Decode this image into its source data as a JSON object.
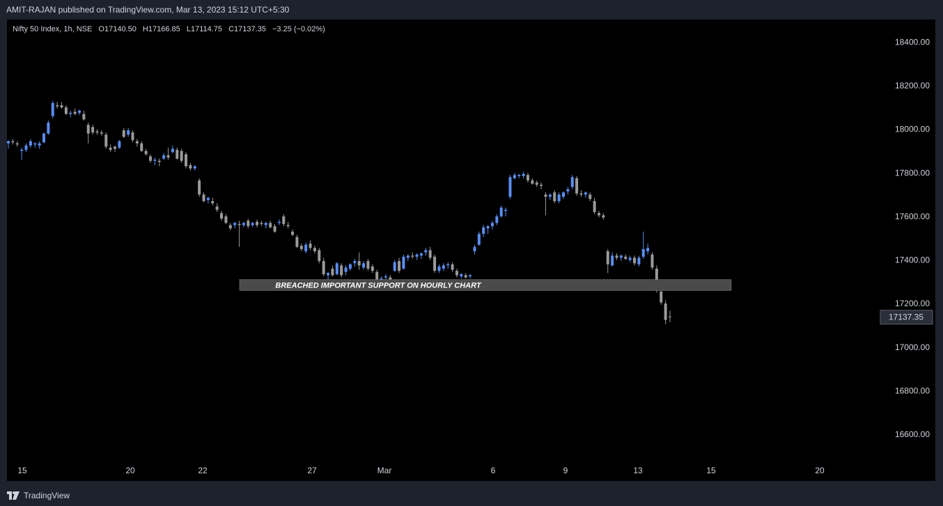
{
  "header": {
    "publisher_text": "AMIT-RAJAN published on TradingView.com, Mar 13, 2023 15:12 UTC+5:30"
  },
  "legend": {
    "symbol": "Nifty 50 Index, 1h, NSE",
    "open_label": "O",
    "open": "17140.50",
    "high_label": "H",
    "high": "17166.85",
    "low_label": "L",
    "low": "17114.75",
    "close_label": "C",
    "close": "17137.35",
    "change": "−3.25 (−0.02%)"
  },
  "footer": {
    "brand": "TradingView",
    "logo_icon": "tradingview-logo-icon"
  },
  "colors": {
    "up": "#5b8def",
    "down": "#9a9a9a",
    "background": "#000000",
    "frame": "#1e222d",
    "text": "#d1d4dc",
    "support_box": "#4a4a4a"
  },
  "chart_data": {
    "type": "candlestick",
    "symbol": "Nifty 50 Index",
    "interval": "1h",
    "ylim": [
      16480,
      18520
    ],
    "yticks": [
      "18400.00",
      "18200.00",
      "18000.00",
      "17800.00",
      "17600.00",
      "17400.00",
      "17200.00",
      "17000.00",
      "16800.00",
      "16600.00"
    ],
    "xtick_labels": [
      "15",
      "20",
      "22",
      "27",
      "Mar",
      "6",
      "9",
      "13",
      "15",
      "20"
    ],
    "last_price_label": "17137.35",
    "last_price": 17137.35,
    "annotation": {
      "text": "BREACHED IMPORTANT SUPPORT ON HOURLY CHART",
      "price_low": 17260,
      "price_high": 17310
    },
    "candles": [
      {
        "o": 17935,
        "h": 17950,
        "l": 17910,
        "c": 17945
      },
      {
        "o": 17945,
        "h": 17955,
        "l": 17930,
        "c": 17940
      },
      {
        "o": 17935,
        "h": 17945,
        "l": 17920,
        "c": 17930
      },
      {
        "o": 17900,
        "h": 17915,
        "l": 17860,
        "c": 17905
      },
      {
        "o": 17905,
        "h": 17935,
        "l": 17895,
        "c": 17925
      },
      {
        "o": 17925,
        "h": 17955,
        "l": 17915,
        "c": 17945
      },
      {
        "o": 17930,
        "h": 17940,
        "l": 17915,
        "c": 17935
      },
      {
        "o": 17925,
        "h": 17945,
        "l": 17910,
        "c": 17935
      },
      {
        "o": 17940,
        "h": 17985,
        "l": 17935,
        "c": 17980
      },
      {
        "o": 17980,
        "h": 18040,
        "l": 17975,
        "c": 18030
      },
      {
        "o": 18060,
        "h": 18130,
        "l": 18050,
        "c": 18120
      },
      {
        "o": 18110,
        "h": 18125,
        "l": 18095,
        "c": 18105
      },
      {
        "o": 18110,
        "h": 18125,
        "l": 18095,
        "c": 18100
      },
      {
        "o": 18100,
        "h": 18110,
        "l": 18065,
        "c": 18070
      },
      {
        "o": 18070,
        "h": 18085,
        "l": 18055,
        "c": 18075
      },
      {
        "o": 18080,
        "h": 18095,
        "l": 18065,
        "c": 18070
      },
      {
        "o": 18075,
        "h": 18090,
        "l": 18065,
        "c": 18085
      },
      {
        "o": 18070,
        "h": 18085,
        "l": 18040,
        "c": 18045
      },
      {
        "o": 18020,
        "h": 18030,
        "l": 17935,
        "c": 17980
      },
      {
        "o": 18010,
        "h": 18020,
        "l": 17975,
        "c": 17985
      },
      {
        "o": 17990,
        "h": 18000,
        "l": 17975,
        "c": 17985
      },
      {
        "o": 17985,
        "h": 17995,
        "l": 17970,
        "c": 17980
      },
      {
        "o": 17975,
        "h": 17985,
        "l": 17910,
        "c": 17920
      },
      {
        "o": 17915,
        "h": 17930,
        "l": 17895,
        "c": 17905
      },
      {
        "o": 17920,
        "h": 17925,
        "l": 17895,
        "c": 17910
      },
      {
        "o": 17915,
        "h": 17950,
        "l": 17910,
        "c": 17945
      },
      {
        "o": 17995,
        "h": 18005,
        "l": 17960,
        "c": 17965
      },
      {
        "o": 17975,
        "h": 18005,
        "l": 17965,
        "c": 17995
      },
      {
        "o": 17985,
        "h": 17995,
        "l": 17940,
        "c": 17950
      },
      {
        "o": 17945,
        "h": 17955,
        "l": 17920,
        "c": 17935
      },
      {
        "o": 17935,
        "h": 17945,
        "l": 17895,
        "c": 17900
      },
      {
        "o": 17900,
        "h": 17910,
        "l": 17880,
        "c": 17885
      },
      {
        "o": 17875,
        "h": 17885,
        "l": 17845,
        "c": 17855
      },
      {
        "o": 17855,
        "h": 17870,
        "l": 17835,
        "c": 17860
      },
      {
        "o": 17855,
        "h": 17865,
        "l": 17830,
        "c": 17850
      },
      {
        "o": 17865,
        "h": 17890,
        "l": 17860,
        "c": 17880
      },
      {
        "o": 17880,
        "h": 17915,
        "l": 17860,
        "c": 17870
      },
      {
        "o": 17895,
        "h": 17925,
        "l": 17890,
        "c": 17910
      },
      {
        "o": 17905,
        "h": 17915,
        "l": 17860,
        "c": 17865
      },
      {
        "o": 17900,
        "h": 17910,
        "l": 17845,
        "c": 17855
      },
      {
        "o": 17885,
        "h": 17895,
        "l": 17820,
        "c": 17830
      },
      {
        "o": 17835,
        "h": 17845,
        "l": 17810,
        "c": 17820
      },
      {
        "o": 17820,
        "h": 17835,
        "l": 17810,
        "c": 17830
      },
      {
        "o": 17765,
        "h": 17775,
        "l": 17690,
        "c": 17700
      },
      {
        "o": 17700,
        "h": 17710,
        "l": 17665,
        "c": 17670
      },
      {
        "o": 17675,
        "h": 17690,
        "l": 17660,
        "c": 17685
      },
      {
        "o": 17670,
        "h": 17685,
        "l": 17650,
        "c": 17660
      },
      {
        "o": 17645,
        "h": 17660,
        "l": 17620,
        "c": 17630
      },
      {
        "o": 17615,
        "h": 17625,
        "l": 17580,
        "c": 17590
      },
      {
        "o": 17600,
        "h": 17610,
        "l": 17565,
        "c": 17570
      },
      {
        "o": 17560,
        "h": 17570,
        "l": 17535,
        "c": 17545
      },
      {
        "o": 17560,
        "h": 17575,
        "l": 17545,
        "c": 17570
      },
      {
        "o": 17565,
        "h": 17580,
        "l": 17460,
        "c": 17560
      },
      {
        "o": 17560,
        "h": 17575,
        "l": 17550,
        "c": 17570
      },
      {
        "o": 17580,
        "h": 17590,
        "l": 17545,
        "c": 17555
      },
      {
        "o": 17560,
        "h": 17575,
        "l": 17550,
        "c": 17570
      },
      {
        "o": 17575,
        "h": 17585,
        "l": 17550,
        "c": 17560
      },
      {
        "o": 17570,
        "h": 17580,
        "l": 17555,
        "c": 17565
      },
      {
        "o": 17560,
        "h": 17575,
        "l": 17545,
        "c": 17570
      },
      {
        "o": 17570,
        "h": 17580,
        "l": 17545,
        "c": 17550
      },
      {
        "o": 17555,
        "h": 17565,
        "l": 17525,
        "c": 17530
      },
      {
        "o": 17570,
        "h": 17585,
        "l": 17560,
        "c": 17575
      },
      {
        "o": 17600,
        "h": 17610,
        "l": 17555,
        "c": 17565
      },
      {
        "o": 17560,
        "h": 17575,
        "l": 17545,
        "c": 17555
      },
      {
        "o": 17530,
        "h": 17540,
        "l": 17510,
        "c": 17515
      },
      {
        "o": 17505,
        "h": 17515,
        "l": 17455,
        "c": 17460
      },
      {
        "o": 17465,
        "h": 17475,
        "l": 17440,
        "c": 17450
      },
      {
        "o": 17440,
        "h": 17480,
        "l": 17430,
        "c": 17470
      },
      {
        "o": 17475,
        "h": 17490,
        "l": 17445,
        "c": 17455
      },
      {
        "o": 17455,
        "h": 17465,
        "l": 17430,
        "c": 17440
      },
      {
        "o": 17445,
        "h": 17455,
        "l": 17385,
        "c": 17395
      },
      {
        "o": 17395,
        "h": 17410,
        "l": 17325,
        "c": 17335
      },
      {
        "o": 17330,
        "h": 17345,
        "l": 17310,
        "c": 17340
      },
      {
        "o": 17360,
        "h": 17375,
        "l": 17325,
        "c": 17330
      },
      {
        "o": 17335,
        "h": 17390,
        "l": 17330,
        "c": 17385
      },
      {
        "o": 17375,
        "h": 17385,
        "l": 17320,
        "c": 17330
      },
      {
        "o": 17345,
        "h": 17375,
        "l": 17330,
        "c": 17365
      },
      {
        "o": 17360,
        "h": 17385,
        "l": 17350,
        "c": 17380
      },
      {
        "o": 17385,
        "h": 17405,
        "l": 17370,
        "c": 17395
      },
      {
        "o": 17395,
        "h": 17435,
        "l": 17355,
        "c": 17375
      },
      {
        "o": 17365,
        "h": 17395,
        "l": 17355,
        "c": 17385
      },
      {
        "o": 17395,
        "h": 17405,
        "l": 17350,
        "c": 17360
      },
      {
        "o": 17370,
        "h": 17380,
        "l": 17340,
        "c": 17350
      },
      {
        "o": 17345,
        "h": 17355,
        "l": 17305,
        "c": 17310
      },
      {
        "o": 17305,
        "h": 17325,
        "l": 17270,
        "c": 17315
      },
      {
        "o": 17320,
        "h": 17335,
        "l": 17270,
        "c": 17325
      },
      {
        "o": 17320,
        "h": 17330,
        "l": 17300,
        "c": 17310
      },
      {
        "o": 17350,
        "h": 17400,
        "l": 17345,
        "c": 17390
      },
      {
        "o": 17395,
        "h": 17410,
        "l": 17340,
        "c": 17350
      },
      {
        "o": 17360,
        "h": 17425,
        "l": 17355,
        "c": 17415
      },
      {
        "o": 17410,
        "h": 17425,
        "l": 17395,
        "c": 17420
      },
      {
        "o": 17420,
        "h": 17435,
        "l": 17405,
        "c": 17415
      },
      {
        "o": 17415,
        "h": 17430,
        "l": 17400,
        "c": 17425
      },
      {
        "o": 17420,
        "h": 17435,
        "l": 17405,
        "c": 17430
      },
      {
        "o": 17435,
        "h": 17455,
        "l": 17420,
        "c": 17445
      },
      {
        "o": 17445,
        "h": 17460,
        "l": 17400,
        "c": 17410
      },
      {
        "o": 17415,
        "h": 17425,
        "l": 17340,
        "c": 17350
      },
      {
        "o": 17350,
        "h": 17380,
        "l": 17340,
        "c": 17370
      },
      {
        "o": 17360,
        "h": 17385,
        "l": 17350,
        "c": 17375
      },
      {
        "o": 17375,
        "h": 17390,
        "l": 17360,
        "c": 17380
      },
      {
        "o": 17380,
        "h": 17390,
        "l": 17345,
        "c": 17355
      },
      {
        "o": 17350,
        "h": 17360,
        "l": 17320,
        "c": 17330
      },
      {
        "o": 17325,
        "h": 17340,
        "l": 17315,
        "c": 17335
      },
      {
        "o": 17330,
        "h": 17340,
        "l": 17315,
        "c": 17320
      },
      {
        "o": 17325,
        "h": 17335,
        "l": 17315,
        "c": 17330
      },
      {
        "o": 17440,
        "h": 17470,
        "l": 17425,
        "c": 17460
      },
      {
        "o": 17470,
        "h": 17530,
        "l": 17465,
        "c": 17520
      },
      {
        "o": 17520,
        "h": 17560,
        "l": 17505,
        "c": 17550
      },
      {
        "o": 17545,
        "h": 17560,
        "l": 17520,
        "c": 17555
      },
      {
        "o": 17555,
        "h": 17580,
        "l": 17540,
        "c": 17570
      },
      {
        "o": 17570,
        "h": 17610,
        "l": 17560,
        "c": 17600
      },
      {
        "o": 17600,
        "h": 17650,
        "l": 17595,
        "c": 17640
      },
      {
        "o": 17625,
        "h": 17640,
        "l": 17600,
        "c": 17630
      },
      {
        "o": 17690,
        "h": 17790,
        "l": 17680,
        "c": 17780
      },
      {
        "o": 17775,
        "h": 17800,
        "l": 17770,
        "c": 17790
      },
      {
        "o": 17785,
        "h": 17795,
        "l": 17775,
        "c": 17790
      },
      {
        "o": 17785,
        "h": 17805,
        "l": 17775,
        "c": 17795
      },
      {
        "o": 17790,
        "h": 17800,
        "l": 17755,
        "c": 17765
      },
      {
        "o": 17765,
        "h": 17775,
        "l": 17745,
        "c": 17750
      },
      {
        "o": 17755,
        "h": 17765,
        "l": 17735,
        "c": 17745
      },
      {
        "o": 17745,
        "h": 17755,
        "l": 17725,
        "c": 17740
      },
      {
        "o": 17700,
        "h": 17710,
        "l": 17605,
        "c": 17690
      },
      {
        "o": 17690,
        "h": 17705,
        "l": 17675,
        "c": 17700
      },
      {
        "o": 17710,
        "h": 17720,
        "l": 17660,
        "c": 17670
      },
      {
        "o": 17670,
        "h": 17710,
        "l": 17660,
        "c": 17700
      },
      {
        "o": 17690,
        "h": 17715,
        "l": 17680,
        "c": 17710
      },
      {
        "o": 17715,
        "h": 17735,
        "l": 17700,
        "c": 17725
      },
      {
        "o": 17735,
        "h": 17790,
        "l": 17725,
        "c": 17780
      },
      {
        "o": 17775,
        "h": 17785,
        "l": 17695,
        "c": 17705
      },
      {
        "o": 17705,
        "h": 17720,
        "l": 17690,
        "c": 17700
      },
      {
        "o": 17700,
        "h": 17715,
        "l": 17685,
        "c": 17710
      },
      {
        "o": 17700,
        "h": 17710,
        "l": 17670,
        "c": 17680
      },
      {
        "o": 17670,
        "h": 17685,
        "l": 17610,
        "c": 17620
      },
      {
        "o": 17615,
        "h": 17625,
        "l": 17595,
        "c": 17605
      },
      {
        "o": 17605,
        "h": 17615,
        "l": 17585,
        "c": 17595
      },
      {
        "o": 17440,
        "h": 17450,
        "l": 17340,
        "c": 17380
      },
      {
        "o": 17375,
        "h": 17435,
        "l": 17370,
        "c": 17420
      },
      {
        "o": 17420,
        "h": 17430,
        "l": 17400,
        "c": 17410
      },
      {
        "o": 17410,
        "h": 17425,
        "l": 17395,
        "c": 17420
      },
      {
        "o": 17415,
        "h": 17425,
        "l": 17400,
        "c": 17405
      },
      {
        "o": 17400,
        "h": 17420,
        "l": 17390,
        "c": 17410
      },
      {
        "o": 17410,
        "h": 17420,
        "l": 17375,
        "c": 17385
      },
      {
        "o": 17380,
        "h": 17420,
        "l": 17370,
        "c": 17410
      },
      {
        "o": 17415,
        "h": 17530,
        "l": 17405,
        "c": 17450
      },
      {
        "o": 17440,
        "h": 17475,
        "l": 17425,
        "c": 17455
      },
      {
        "o": 17425,
        "h": 17435,
        "l": 17355,
        "c": 17365
      },
      {
        "o": 17360,
        "h": 17375,
        "l": 17250,
        "c": 17260
      },
      {
        "o": 17255,
        "h": 17270,
        "l": 17195,
        "c": 17205
      },
      {
        "o": 17200,
        "h": 17215,
        "l": 17105,
        "c": 17125
      },
      {
        "o": 17140.5,
        "h": 17166.85,
        "l": 17114.75,
        "c": 17137.35
      }
    ],
    "type_note": ""
  }
}
